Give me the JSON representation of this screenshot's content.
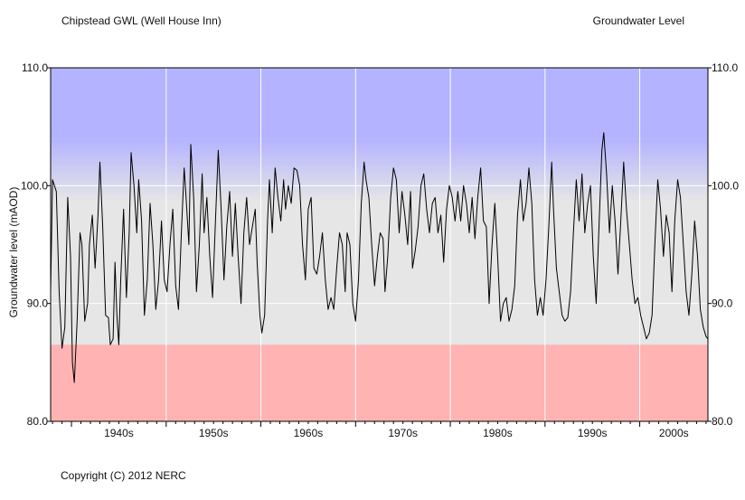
{
  "header": {
    "title": "Chipstead GWL (Well House Inn)",
    "subtitle": "Groundwater Level"
  },
  "footer": {
    "copyright": "Copyright (C) 2012 NERC"
  },
  "colors": {
    "plot_background": "#e6e6e6",
    "high_band": "#b3b3ff",
    "low_band": "#ffb3b3",
    "gridline": "#ffffff",
    "series_line": "#000000"
  },
  "chart_data": {
    "type": "line",
    "title": "Chipstead GWL (Well House Inn)",
    "subtitle": "Groundwater Level",
    "xlabel": "",
    "ylabel": "Groundwater level (mAOD)",
    "ylim": [
      80,
      110
    ],
    "xlim": [
      1937.8,
      2007.2
    ],
    "y_ticks": [
      "80.0",
      "90.0",
      "100.0",
      "110.0"
    ],
    "x_ticks": [
      "1940s",
      "1950s",
      "1960s",
      "1970s",
      "1980s",
      "1990s",
      "2000s"
    ],
    "grid": true,
    "bands": {
      "high_above": 104,
      "low_below": 86.5
    },
    "series": [
      {
        "values": [
          [
            1937.8,
            91.0
          ],
          [
            1938.0,
            100.5
          ],
          [
            1938.4,
            99.5
          ],
          [
            1938.7,
            91.0
          ],
          [
            1939.0,
            86.2
          ],
          [
            1939.3,
            88.0
          ],
          [
            1939.6,
            99.0
          ],
          [
            1939.9,
            94.0
          ],
          [
            1940.1,
            85.0
          ],
          [
            1940.3,
            83.3
          ],
          [
            1940.6,
            88.5
          ],
          [
            1940.9,
            96.0
          ],
          [
            1941.1,
            95.0
          ],
          [
            1941.4,
            88.5
          ],
          [
            1941.7,
            90.0
          ],
          [
            1941.9,
            95.0
          ],
          [
            1942.2,
            97.5
          ],
          [
            1942.5,
            93.0
          ],
          [
            1942.8,
            97.5
          ],
          [
            1943.0,
            102.0
          ],
          [
            1943.3,
            96.5
          ],
          [
            1943.6,
            89.0
          ],
          [
            1943.9,
            88.8
          ],
          [
            1944.1,
            86.5
          ],
          [
            1944.4,
            87.0
          ],
          [
            1944.6,
            93.5
          ],
          [
            1944.8,
            89.0
          ],
          [
            1945.0,
            86.5
          ],
          [
            1945.2,
            92.0
          ],
          [
            1945.5,
            98.0
          ],
          [
            1945.8,
            90.5
          ],
          [
            1946.1,
            96.0
          ],
          [
            1946.3,
            102.8
          ],
          [
            1946.6,
            100.0
          ],
          [
            1946.9,
            96.0
          ],
          [
            1947.1,
            100.5
          ],
          [
            1947.4,
            97.0
          ],
          [
            1947.7,
            89.0
          ],
          [
            1948.0,
            92.0
          ],
          [
            1948.3,
            98.5
          ],
          [
            1948.6,
            95.0
          ],
          [
            1948.9,
            89.5
          ],
          [
            1949.2,
            92.0
          ],
          [
            1949.5,
            97.0
          ],
          [
            1949.8,
            92.0
          ],
          [
            1950.1,
            91.0
          ],
          [
            1950.4,
            95.0
          ],
          [
            1950.7,
            98.0
          ],
          [
            1951.0,
            91.5
          ],
          [
            1951.3,
            89.5
          ],
          [
            1951.6,
            96.0
          ],
          [
            1951.9,
            101.5
          ],
          [
            1952.1,
            99.0
          ],
          [
            1952.4,
            95.0
          ],
          [
            1952.6,
            103.5
          ],
          [
            1952.9,
            99.0
          ],
          [
            1953.2,
            91.0
          ],
          [
            1953.5,
            95.0
          ],
          [
            1953.8,
            101.0
          ],
          [
            1954.0,
            96.0
          ],
          [
            1954.3,
            99.0
          ],
          [
            1954.6,
            94.0
          ],
          [
            1954.9,
            90.5
          ],
          [
            1955.2,
            97.0
          ],
          [
            1955.5,
            103.0
          ],
          [
            1955.8,
            98.0
          ],
          [
            1956.1,
            92.0
          ],
          [
            1956.4,
            96.5
          ],
          [
            1956.7,
            99.5
          ],
          [
            1957.0,
            94.0
          ],
          [
            1957.3,
            98.5
          ],
          [
            1957.6,
            94.0
          ],
          [
            1957.9,
            90.0
          ],
          [
            1958.2,
            96.0
          ],
          [
            1958.5,
            99.0
          ],
          [
            1958.8,
            95.0
          ],
          [
            1959.1,
            96.5
          ],
          [
            1959.4,
            98.0
          ],
          [
            1959.6,
            93.5
          ],
          [
            1959.9,
            89.0
          ],
          [
            1960.1,
            87.5
          ],
          [
            1960.4,
            89.0
          ],
          [
            1960.7,
            97.0
          ],
          [
            1960.9,
            100.5
          ],
          [
            1961.2,
            96.0
          ],
          [
            1961.5,
            101.5
          ],
          [
            1961.8,
            99.0
          ],
          [
            1962.1,
            97.0
          ],
          [
            1962.4,
            100.5
          ],
          [
            1962.6,
            98.0
          ],
          [
            1962.9,
            100.0
          ],
          [
            1963.2,
            98.5
          ],
          [
            1963.5,
            101.5
          ],
          [
            1963.8,
            101.3
          ],
          [
            1964.1,
            100.0
          ],
          [
            1964.4,
            95.0
          ],
          [
            1964.7,
            92.0
          ],
          [
            1965.0,
            98.0
          ],
          [
            1965.3,
            99.0
          ],
          [
            1965.6,
            93.0
          ],
          [
            1965.9,
            92.5
          ],
          [
            1966.2,
            94.0
          ],
          [
            1966.5,
            96.0
          ],
          [
            1966.8,
            92.0
          ],
          [
            1967.1,
            89.5
          ],
          [
            1967.4,
            90.5
          ],
          [
            1967.7,
            89.5
          ],
          [
            1968.0,
            93.0
          ],
          [
            1968.3,
            96.0
          ],
          [
            1968.6,
            95.0
          ],
          [
            1968.9,
            91.0
          ],
          [
            1969.1,
            96.0
          ],
          [
            1969.4,
            95.0
          ],
          [
            1969.7,
            90.0
          ],
          [
            1970.0,
            88.5
          ],
          [
            1970.3,
            92.0
          ],
          [
            1970.6,
            98.5
          ],
          [
            1970.9,
            102.0
          ],
          [
            1971.1,
            100.5
          ],
          [
            1971.4,
            99.0
          ],
          [
            1971.7,
            95.0
          ],
          [
            1972.0,
            91.5
          ],
          [
            1972.3,
            94.0
          ],
          [
            1972.6,
            96.0
          ],
          [
            1972.9,
            95.5
          ],
          [
            1973.1,
            91.0
          ],
          [
            1973.4,
            94.0
          ],
          [
            1973.7,
            99.0
          ],
          [
            1974.0,
            101.5
          ],
          [
            1974.3,
            100.5
          ],
          [
            1974.6,
            96.0
          ],
          [
            1974.9,
            99.5
          ],
          [
            1975.2,
            97.5
          ],
          [
            1975.5,
            95.0
          ],
          [
            1975.8,
            99.5
          ],
          [
            1976.0,
            93.0
          ],
          [
            1976.3,
            94.5
          ],
          [
            1976.6,
            96.5
          ],
          [
            1976.9,
            100.0
          ],
          [
            1977.2,
            101.0
          ],
          [
            1977.5,
            98.0
          ],
          [
            1977.8,
            96.0
          ],
          [
            1978.1,
            98.5
          ],
          [
            1978.4,
            99.0
          ],
          [
            1978.7,
            96.0
          ],
          [
            1979.0,
            97.5
          ],
          [
            1979.3,
            93.5
          ],
          [
            1979.6,
            98.0
          ],
          [
            1979.9,
            100.0
          ],
          [
            1980.2,
            99.0
          ],
          [
            1980.5,
            97.0
          ],
          [
            1980.8,
            99.5
          ],
          [
            1981.1,
            97.0
          ],
          [
            1981.4,
            100.0
          ],
          [
            1981.7,
            98.5
          ],
          [
            1982.0,
            96.0
          ],
          [
            1982.3,
            99.0
          ],
          [
            1982.6,
            95.5
          ],
          [
            1982.9,
            99.0
          ],
          [
            1983.2,
            101.5
          ],
          [
            1983.5,
            97.0
          ],
          [
            1983.8,
            96.5
          ],
          [
            1984.1,
            90.0
          ],
          [
            1984.4,
            95.0
          ],
          [
            1984.7,
            98.5
          ],
          [
            1985.0,
            94.0
          ],
          [
            1985.3,
            88.5
          ],
          [
            1985.6,
            90.0
          ],
          [
            1985.9,
            90.5
          ],
          [
            1986.2,
            88.5
          ],
          [
            1986.5,
            89.5
          ],
          [
            1986.8,
            91.5
          ],
          [
            1987.1,
            97.5
          ],
          [
            1987.4,
            100.5
          ],
          [
            1987.7,
            97.0
          ],
          [
            1988.0,
            98.5
          ],
          [
            1988.3,
            101.5
          ],
          [
            1988.6,
            98.5
          ],
          [
            1988.9,
            92.0
          ],
          [
            1989.2,
            89.0
          ],
          [
            1989.5,
            90.5
          ],
          [
            1989.8,
            89.0
          ],
          [
            1990.1,
            92.0
          ],
          [
            1990.4,
            96.5
          ],
          [
            1990.7,
            102.0
          ],
          [
            1990.9,
            98.0
          ],
          [
            1991.2,
            93.0
          ],
          [
            1991.5,
            91.0
          ],
          [
            1991.8,
            89.0
          ],
          [
            1992.1,
            88.5
          ],
          [
            1992.4,
            88.8
          ],
          [
            1992.7,
            91.0
          ],
          [
            1993.0,
            96.0
          ],
          [
            1993.3,
            100.5
          ],
          [
            1993.6,
            97.0
          ],
          [
            1993.9,
            101.0
          ],
          [
            1994.2,
            96.0
          ],
          [
            1994.5,
            98.5
          ],
          [
            1994.8,
            100.0
          ],
          [
            1995.1,
            94.0
          ],
          [
            1995.4,
            90.0
          ],
          [
            1995.7,
            96.5
          ],
          [
            1996.0,
            103.0
          ],
          [
            1996.2,
            104.5
          ],
          [
            1996.5,
            101.0
          ],
          [
            1996.8,
            96.0
          ],
          [
            1997.1,
            100.0
          ],
          [
            1997.4,
            97.0
          ],
          [
            1997.7,
            92.5
          ],
          [
            1998.0,
            97.0
          ],
          [
            1998.3,
            102.0
          ],
          [
            1998.6,
            98.0
          ],
          [
            1998.9,
            95.0
          ],
          [
            1999.2,
            92.0
          ],
          [
            1999.5,
            90.0
          ],
          [
            1999.8,
            90.5
          ],
          [
            2000.1,
            89.0
          ],
          [
            2000.4,
            88.0
          ],
          [
            2000.7,
            87.0
          ],
          [
            2001.0,
            87.5
          ],
          [
            2001.3,
            89.0
          ],
          [
            2001.6,
            95.0
          ],
          [
            2001.9,
            100.5
          ],
          [
            2002.2,
            98.0
          ],
          [
            2002.5,
            94.0
          ],
          [
            2002.8,
            97.5
          ],
          [
            2003.1,
            96.0
          ],
          [
            2003.4,
            91.0
          ],
          [
            2003.7,
            97.0
          ],
          [
            2004.0,
            100.5
          ],
          [
            2004.3,
            99.0
          ],
          [
            2004.6,
            95.0
          ],
          [
            2004.9,
            91.0
          ],
          [
            2005.2,
            89.0
          ],
          [
            2005.5,
            92.5
          ],
          [
            2005.8,
            97.0
          ],
          [
            2006.1,
            94.0
          ],
          [
            2006.4,
            89.5
          ],
          [
            2006.7,
            88.0
          ],
          [
            2007.0,
            87.2
          ],
          [
            2007.2,
            87.0
          ]
        ]
      }
    ]
  }
}
